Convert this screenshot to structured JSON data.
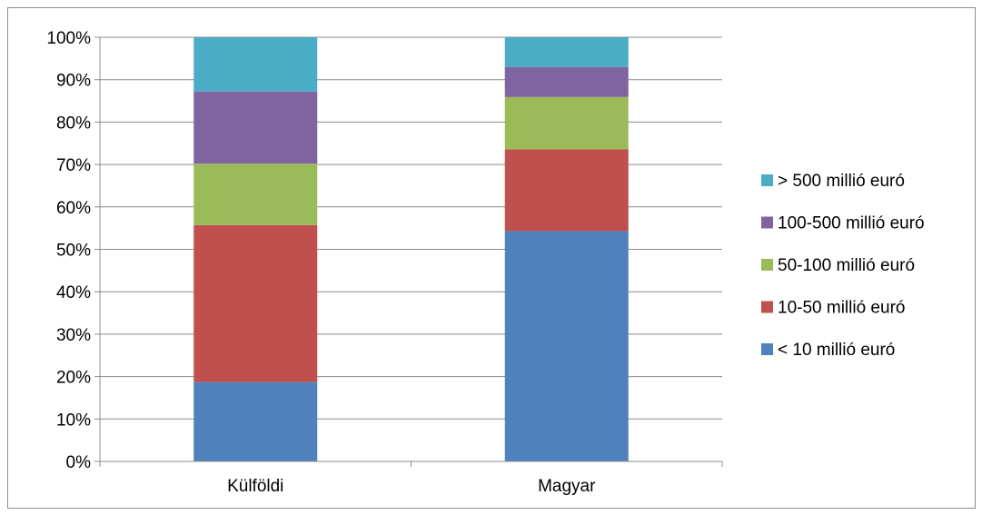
{
  "chart_data": {
    "type": "bar",
    "stacked": true,
    "percent": true,
    "title": "",
    "xlabel": "",
    "ylabel": "",
    "ylim": [
      0,
      100
    ],
    "yticks": [
      "0%",
      "10%",
      "20%",
      "30%",
      "40%",
      "50%",
      "60%",
      "70%",
      "80%",
      "90%",
      "100%"
    ],
    "categories": [
      "Külföldi",
      "Magyar"
    ],
    "series": [
      {
        "name": "< 10 millió euró",
        "color": "#4f81bd",
        "values": [
          18.7,
          54.3
        ]
      },
      {
        "name": "10-50 millió euró",
        "color": "#c0504d",
        "values": [
          37.0,
          19.3
        ]
      },
      {
        "name": "50-100 millió euró",
        "color": "#9bbb59",
        "values": [
          14.5,
          12.3
        ]
      },
      {
        "name": "100-500 millió euró",
        "color": "#8064a2",
        "values": [
          17.0,
          7.1
        ]
      },
      {
        "name": "> 500 millió euró",
        "color": "#4bacc6",
        "values": [
          12.8,
          7.0
        ]
      }
    ],
    "grid": true,
    "legend_position": "right"
  }
}
